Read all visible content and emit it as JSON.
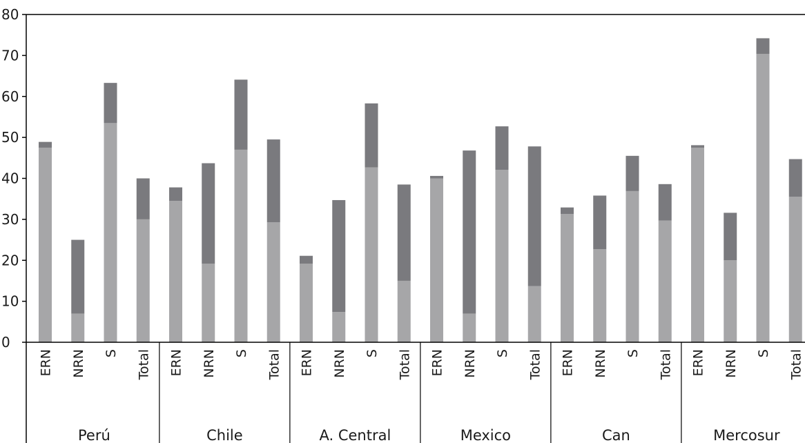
{
  "chart_data": {
    "type": "bar",
    "stacked": true,
    "title": "",
    "xlabel": "",
    "ylabel": "",
    "ylim": [
      0,
      80
    ],
    "yticks": [
      0,
      10,
      20,
      30,
      40,
      50,
      60,
      70,
      80
    ],
    "grid": false,
    "legend": "none",
    "groups": [
      "Perú",
      "Chile",
      "A. Central",
      "Mexico",
      "Can",
      "Mercosur"
    ],
    "subcategories": [
      "ERN",
      "NRN",
      "S",
      "Total"
    ],
    "categories": [
      "Perú ERN",
      "Perú NRN",
      "Perú S",
      "Perú Total",
      "Chile ERN",
      "Chile NRN",
      "Chile S",
      "Chile Total",
      "A. Central ERN",
      "A. Central NRN",
      "A. Central S",
      "A. Central Total",
      "Mexico ERN",
      "Mexico NRN",
      "Mexico S",
      "Mexico Total",
      "Can ERN",
      "Can NRN",
      "Can S",
      "Can Total",
      "Mercosur ERN",
      "Mercosur NRN",
      "Mercosur S",
      "Mercosur Total"
    ],
    "series": [
      {
        "color": "#a6a6a8",
        "values": [
          47.5,
          7,
          53.5,
          30,
          34.5,
          19.2,
          47,
          29.3,
          19.2,
          7.4,
          42.7,
          15,
          40,
          7,
          42.1,
          13.7,
          31.3,
          22.7,
          36.9,
          29.7,
          47.5,
          20,
          70.4,
          35.5
        ]
      },
      {
        "color": "#7a7a7e",
        "values": [
          1.4,
          18,
          9.8,
          10,
          3.3,
          24.5,
          17.1,
          20.2,
          1.9,
          27.3,
          15.6,
          23.5,
          0.6,
          39.8,
          10.6,
          34.1,
          1.6,
          13.1,
          8.6,
          8.9,
          0.6,
          11.6,
          3.8,
          9.2
        ]
      }
    ]
  },
  "colors": {
    "axis": "#000000",
    "text": "#1a1a1a"
  }
}
